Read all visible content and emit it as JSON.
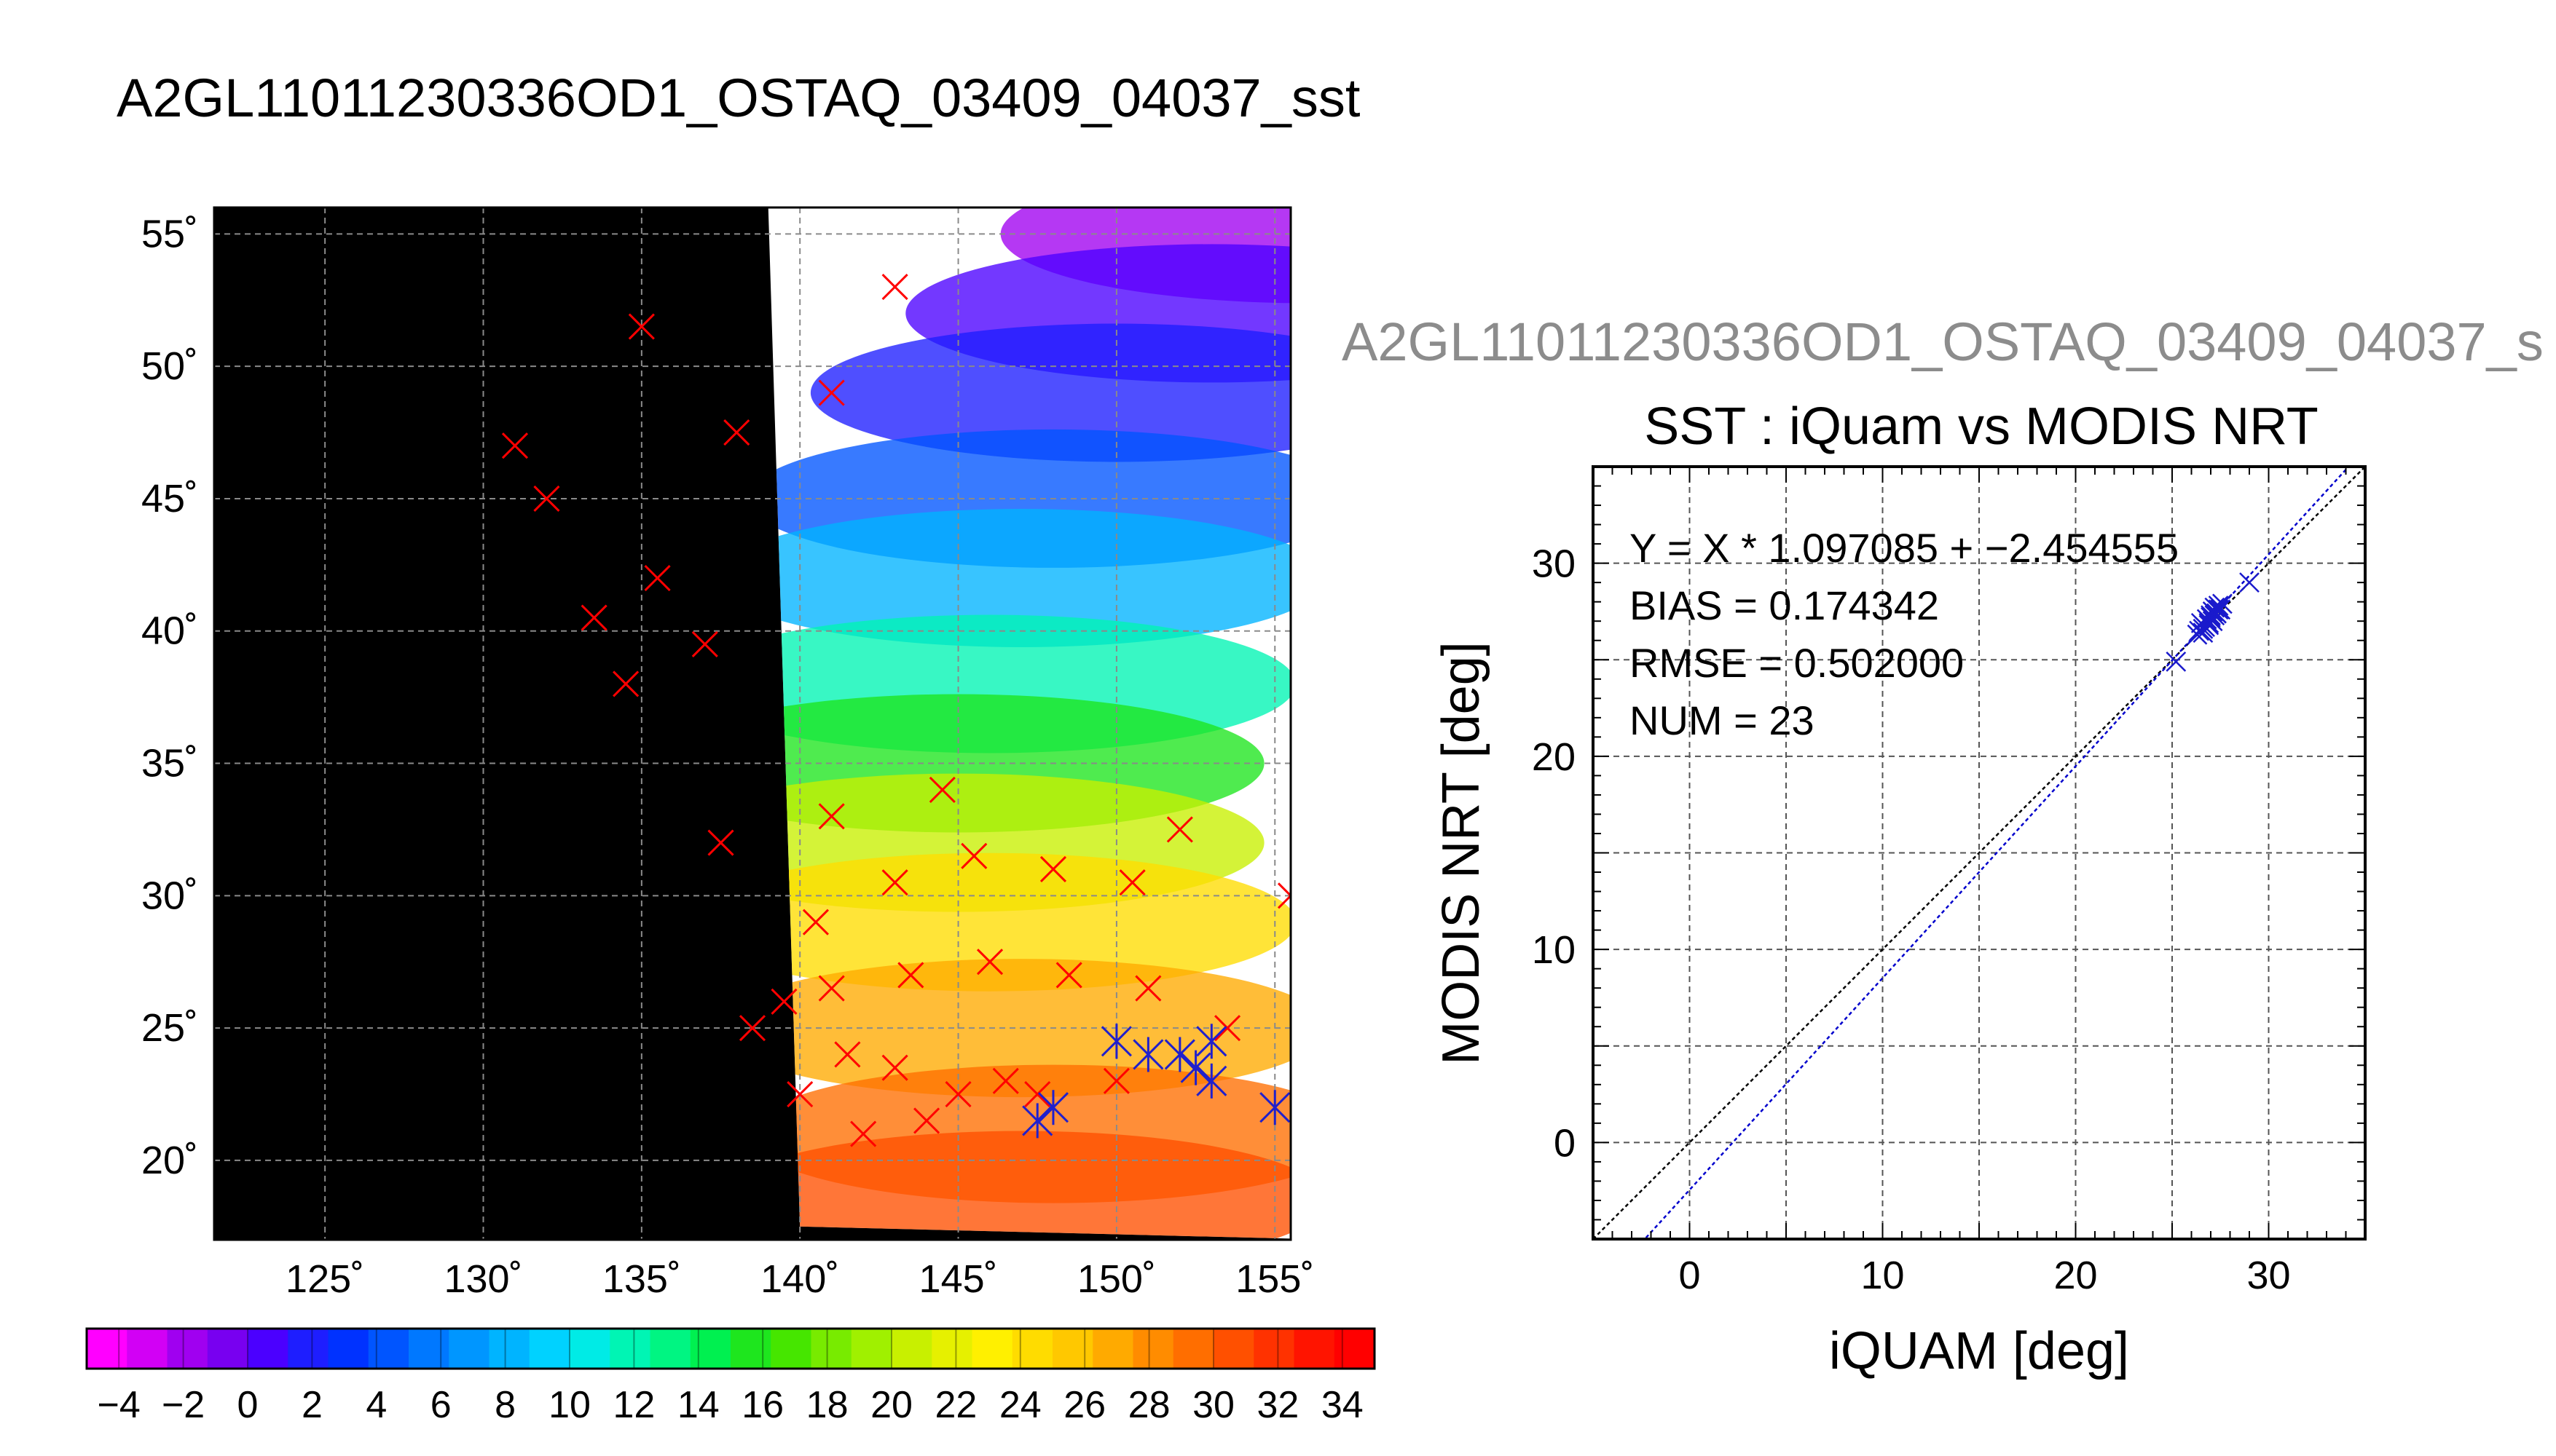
{
  "figure": {
    "map_title": "A2GL11011230336OD1_OSTAQ_03409_04037_sst",
    "side_title": "A2GL11011230336OD1_OSTAQ_03409_04037_s"
  },
  "chart_data": [
    {
      "type": "heatmap",
      "name": "sst-map",
      "lon_range": [
        121.5,
        155.5
      ],
      "lat_range": [
        17,
        56
      ],
      "lon_ticks": [
        125,
        130,
        135,
        140,
        145,
        150,
        155
      ],
      "lat_ticks": [
        20,
        25,
        30,
        35,
        40,
        45,
        50,
        55
      ],
      "lon_tick_labels": [
        "125˚",
        "130˚",
        "135˚",
        "140˚",
        "145˚",
        "150˚",
        "155˚"
      ],
      "lat_tick_labels": [
        "20˚",
        "25˚",
        "30˚",
        "35˚",
        "40˚",
        "45˚",
        "50˚",
        "55˚"
      ],
      "grid": true,
      "background_color": "#000000",
      "cloud_color": "#ffffff",
      "land_color": "#000000",
      "swath": [
        [
          140,
          17.5
        ],
        [
          139,
          56
        ],
        [
          167,
          56
        ],
        [
          157,
          17
        ]
      ],
      "observations": [
        [
          140.0,
          22.5
        ],
        [
          141.5,
          24.0
        ],
        [
          143.0,
          23.5
        ],
        [
          145.0,
          22.5
        ],
        [
          146.5,
          23.0
        ],
        [
          144.0,
          21.5
        ],
        [
          142.0,
          21.0
        ],
        [
          147.5,
          22.5
        ],
        [
          150.0,
          23.0
        ],
        [
          138.5,
          25.0
        ],
        [
          139.5,
          26.0
        ],
        [
          141.0,
          26.5
        ],
        [
          143.5,
          27.0
        ],
        [
          146.0,
          27.5
        ],
        [
          148.5,
          27.0
        ],
        [
          151.0,
          26.5
        ],
        [
          153.5,
          25.0
        ],
        [
          140.5,
          29.0
        ],
        [
          143.0,
          30.5
        ],
        [
          145.5,
          31.5
        ],
        [
          148.0,
          31.0
        ],
        [
          150.5,
          30.5
        ],
        [
          137.5,
          32.0
        ],
        [
          141.0,
          33.0
        ],
        [
          144.5,
          34.0
        ],
        [
          152.0,
          32.5
        ],
        [
          155.5,
          30.0
        ],
        [
          134.5,
          38.0
        ],
        [
          137.0,
          39.5
        ],
        [
          135.5,
          42.0
        ],
        [
          132.0,
          45.0
        ],
        [
          131.0,
          47.0
        ],
        [
          135.0,
          51.5
        ],
        [
          141.0,
          49.0
        ],
        [
          143.0,
          53.0
        ],
        [
          138.0,
          47.5
        ],
        [
          133.5,
          40.5
        ]
      ],
      "colorbar": {
        "ticks": [
          -4,
          -2,
          0,
          2,
          4,
          6,
          8,
          10,
          12,
          14,
          16,
          18,
          20,
          22,
          24,
          26,
          28,
          30,
          32,
          34
        ],
        "tick_labels": [
          "−4",
          "−2",
          "0",
          "2",
          "4",
          "6",
          "8",
          "10",
          "12",
          "14",
          "16",
          "18",
          "20",
          "22",
          "24",
          "26",
          "28",
          "30",
          "32",
          "34"
        ],
        "range": [
          -5,
          35
        ],
        "colors": [
          "#ff00ff",
          "#d200f5",
          "#a000f0",
          "#7800f0",
          "#4b00ff",
          "#1e1eff",
          "#0032ff",
          "#0055ff",
          "#0078ff",
          "#0096ff",
          "#00b4ff",
          "#00d2ff",
          "#00ebe6",
          "#00f5b4",
          "#00f582",
          "#00f050",
          "#1ee61e",
          "#46e600",
          "#78eb00",
          "#a0f000",
          "#c8f000",
          "#e6f000",
          "#fff000",
          "#ffdc00",
          "#ffc800",
          "#ffaa00",
          "#ff8c00",
          "#ff6e00",
          "#ff5000",
          "#ff3200",
          "#ff1400",
          "#ff0000"
        ]
      },
      "sst_samples": [
        {
          "lon": 156.0,
          "lat": 55.0,
          "sst": -2
        },
        {
          "lon": 153.0,
          "lat": 52.0,
          "sst": 0
        },
        {
          "lon": 150.0,
          "lat": 49.0,
          "sst": 2
        },
        {
          "lon": 148.0,
          "lat": 45.0,
          "sst": 4
        },
        {
          "lon": 147.0,
          "lat": 42.0,
          "sst": 8
        },
        {
          "lon": 146.0,
          "lat": 38.0,
          "sst": 12
        },
        {
          "lon": 145.0,
          "lat": 35.0,
          "sst": 16
        },
        {
          "lon": 145.0,
          "lat": 32.0,
          "sst": 20
        },
        {
          "lon": 146.0,
          "lat": 29.0,
          "sst": 24
        },
        {
          "lon": 147.0,
          "lat": 25.0,
          "sst": 27
        },
        {
          "lon": 148.0,
          "lat": 21.0,
          "sst": 29
        },
        {
          "lon": 147.0,
          "lat": 18.5,
          "sst": 31
        }
      ],
      "match_points": [
        {
          "lon": 147.5,
          "lat": 21.5,
          "match": true
        },
        {
          "lon": 148.0,
          "lat": 22.0,
          "match": true
        },
        {
          "lon": 150.0,
          "lat": 24.5,
          "match": true
        },
        {
          "lon": 151.0,
          "lat": 24.0,
          "match": true
        },
        {
          "lon": 152.0,
          "lat": 24.0,
          "match": true
        },
        {
          "lon": 152.5,
          "lat": 23.5,
          "match": true
        },
        {
          "lon": 153.0,
          "lat": 24.5,
          "match": true
        },
        {
          "lon": 153.0,
          "lat": 23.0,
          "match": true
        },
        {
          "lon": 155.0,
          "lat": 22.0,
          "match": true
        }
      ]
    },
    {
      "type": "scatter",
      "name": "iquam-vs-modis",
      "title": "SST : iQuam vs MODIS NRT",
      "xlabel": "iQUAM [deg]",
      "ylabel": "MODIS NRT [deg]",
      "xlim": [
        -5,
        35
      ],
      "ylim": [
        -5,
        35
      ],
      "xticks": [
        0,
        10,
        20,
        30
      ],
      "yticks": [
        0,
        10,
        20,
        30
      ],
      "grid": true,
      "stats": {
        "fit": "Y = X * 1.097085 + −2.454555",
        "bias": "BIAS = 0.174342",
        "rmse": "RMSE = 0.502000",
        "num": "NUM = 23"
      },
      "fit_line": {
        "slope": 1.097085,
        "intercept": -2.454555
      },
      "identity_line": true,
      "x": [
        25.2,
        26.3,
        26.5,
        26.6,
        26.8,
        26.9,
        27.0,
        27.1,
        27.1,
        27.2,
        27.3,
        27.4,
        27.5,
        27.6,
        26.4,
        26.7,
        27.0,
        27.2,
        27.4,
        29.0,
        26.6,
        26.9,
        27.3
      ],
      "y": [
        24.9,
        26.3,
        26.9,
        26.6,
        27.1,
        26.8,
        27.3,
        27.5,
        27.0,
        27.7,
        27.4,
        27.8,
        27.6,
        27.9,
        26.5,
        26.7,
        27.2,
        27.3,
        27.6,
        29.0,
        26.4,
        26.9,
        27.4
      ]
    }
  ]
}
